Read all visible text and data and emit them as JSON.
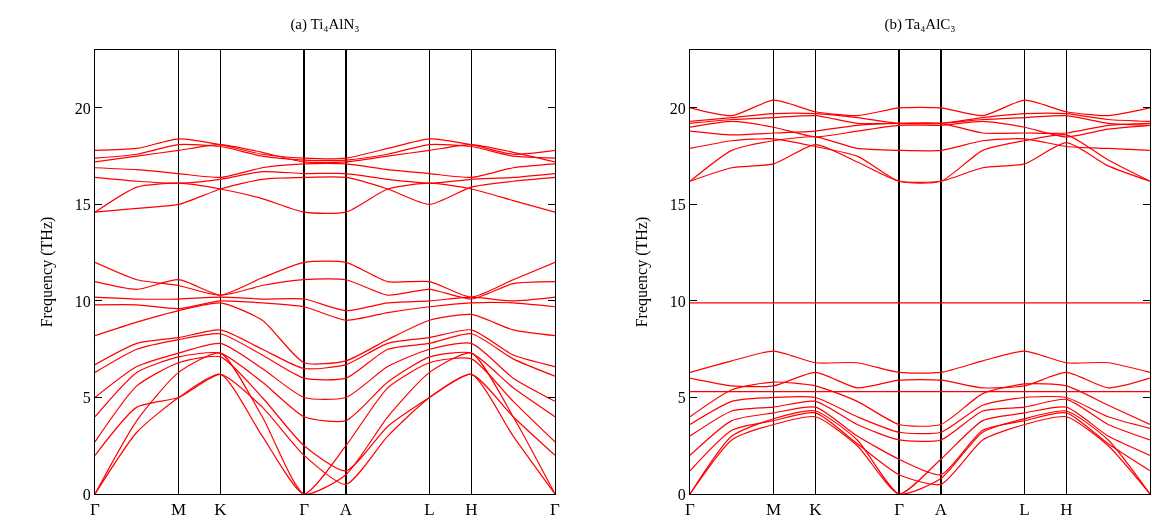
{
  "chart_data": [
    {
      "type": "line",
      "title": "(a) Ti₄AlN₃",
      "ylabel": "Frequency (THz)",
      "grid": "x",
      "line_style": "solid",
      "marker": "none",
      "categories": [
        "Γ",
        null,
        "M",
        "K",
        null,
        "Γ",
        "A",
        null,
        "L",
        "H",
        null,
        "Γ"
      ],
      "ylim": [
        0,
        23
      ],
      "yticks": [
        0,
        5,
        10,
        15,
        20
      ],
      "series": [
        {
          "color": "#ff0000",
          "values": [
            17.8,
            17.9,
            18.4,
            18.1,
            17.6,
            17.4,
            17.4,
            17.9,
            18.4,
            18.1,
            17.6,
            17.8
          ]
        },
        {
          "color": "#ff0000",
          "values": [
            17.4,
            17.6,
            18.1,
            18.0,
            17.5,
            17.3,
            17.3,
            17.6,
            18.1,
            18.0,
            17.5,
            17.4
          ]
        },
        {
          "color": "#ff0000",
          "values": [
            17.2,
            17.5,
            17.8,
            18.1,
            17.7,
            17.2,
            17.2,
            17.5,
            17.8,
            18.1,
            17.7,
            17.2
          ]
        },
        {
          "color": "#ff0000",
          "values": [
            16.9,
            16.8,
            16.6,
            16.4,
            16.9,
            17.1,
            17.1,
            16.8,
            16.6,
            16.4,
            16.9,
            17.1
          ]
        },
        {
          "color": "#ff0000",
          "values": [
            16.4,
            16.2,
            16.1,
            16.3,
            16.7,
            16.6,
            16.6,
            16.3,
            16.1,
            16.3,
            16.4,
            16.6
          ]
        },
        {
          "color": "#ff0000",
          "values": [
            14.6,
            15.9,
            16.1,
            15.8,
            15.3,
            14.6,
            14.6,
            15.8,
            16.1,
            15.8,
            15.2,
            14.6
          ]
        },
        {
          "color": "#ff0000",
          "values": [
            14.6,
            14.8,
            15.0,
            15.8,
            16.3,
            16.4,
            16.4,
            15.8,
            15.0,
            15.9,
            16.2,
            16.4
          ]
        },
        {
          "color": "#ff0000",
          "values": [
            12.0,
            11.1,
            10.8,
            10.3,
            11.2,
            12.0,
            12.0,
            11.0,
            11.0,
            10.2,
            11.1,
            12.0
          ]
        },
        {
          "color": "#ff0000",
          "values": [
            11.0,
            10.6,
            11.1,
            10.3,
            10.8,
            11.1,
            11.1,
            10.3,
            10.6,
            10.1,
            10.9,
            11.0
          ]
        },
        {
          "color": "#ff0000",
          "values": [
            10.2,
            10.1,
            10.1,
            10.2,
            10.1,
            10.1,
            9.5,
            9.9,
            10.0,
            10.2,
            10.0,
            10.2
          ]
        },
        {
          "color": "#ff0000",
          "values": [
            9.8,
            9.8,
            9.6,
            10.0,
            9.9,
            9.7,
            9.0,
            9.4,
            9.7,
            9.9,
            9.9,
            9.7
          ]
        },
        {
          "color": "#ff0000",
          "values": [
            8.2,
            8.9,
            9.5,
            9.9,
            9.0,
            6.8,
            6.9,
            8.0,
            9.0,
            9.3,
            8.5,
            8.2
          ]
        },
        {
          "color": "#ff0000",
          "values": [
            6.7,
            7.8,
            8.1,
            8.5,
            7.5,
            6.5,
            6.7,
            7.8,
            8.1,
            8.5,
            7.2,
            6.6
          ]
        },
        {
          "color": "#ff0000",
          "values": [
            6.3,
            7.5,
            8.0,
            8.3,
            7.2,
            6.0,
            6.0,
            7.5,
            7.8,
            8.3,
            7.0,
            6.1
          ]
        },
        {
          "color": "#ff0000",
          "values": [
            5.0,
            6.6,
            7.3,
            7.8,
            6.5,
            5.0,
            5.0,
            6.6,
            7.5,
            7.8,
            6.0,
            4.8
          ]
        },
        {
          "color": "#ff0000",
          "values": [
            4.0,
            6.3,
            7.1,
            7.3,
            5.8,
            4.0,
            3.8,
            5.8,
            7.1,
            7.3,
            5.5,
            4.0
          ]
        },
        {
          "color": "#ff0000",
          "values": [
            2.7,
            5.6,
            6.8,
            7.1,
            5.0,
            2.5,
            1.2,
            3.5,
            5.0,
            6.2,
            4.0,
            2.0
          ]
        },
        {
          "color": "#ff0000",
          "values": [
            2.0,
            4.5,
            5.0,
            6.2,
            4.5,
            2.0,
            0.5,
            3.0,
            5.0,
            6.2,
            3.0,
            0
          ]
        },
        {
          "color": "#ff0000",
          "values": [
            0,
            3.2,
            5.0,
            6.2,
            3.0,
            0,
            2.5,
            5.5,
            6.8,
            7.0,
            4.8,
            2.7
          ]
        },
        {
          "color": "#ff0000",
          "values": [
            0,
            3.8,
            6.3,
            7.3,
            4.0,
            0,
            1.0,
            4.0,
            6.3,
            7.3,
            4.0,
            0
          ]
        }
      ]
    },
    {
      "type": "line",
      "title": "(b) Ta₄AlC₃",
      "ylabel": "Frequency (THz)",
      "grid": "x",
      "line_style": "solid",
      "marker": "none",
      "categories": [
        "Γ",
        null,
        "M",
        "K",
        null,
        "Γ",
        "A",
        null,
        "L",
        "H",
        null,
        null
      ],
      "ylim": [
        0,
        23
      ],
      "yticks": [
        0,
        5,
        10,
        15,
        20
      ],
      "series": [
        {
          "color": "#ff0000",
          "values": [
            20.0,
            19.6,
            20.4,
            19.8,
            19.6,
            20.0,
            20.0,
            19.6,
            20.4,
            19.8,
            19.6,
            20.0
          ]
        },
        {
          "color": "#ff0000",
          "values": [
            19.3,
            19.5,
            19.7,
            19.7,
            19.5,
            19.2,
            19.2,
            19.5,
            19.7,
            19.7,
            19.4,
            19.3
          ]
        },
        {
          "color": "#ff0000",
          "values": [
            19.2,
            19.4,
            19.5,
            19.6,
            19.2,
            19.2,
            19.2,
            19.4,
            19.5,
            19.6,
            19.2,
            19.1
          ]
        },
        {
          "color": "#ff0000",
          "values": [
            19.0,
            19.3,
            19.0,
            18.5,
            18.8,
            19.1,
            19.1,
            19.3,
            19.0,
            18.5,
            18.9,
            19.1
          ]
        },
        {
          "color": "#ff0000",
          "values": [
            18.8,
            18.6,
            18.7,
            18.8,
            19.1,
            19.2,
            19.2,
            18.7,
            18.7,
            18.7,
            19.1,
            19.2
          ]
        },
        {
          "color": "#ff0000",
          "values": [
            17.9,
            18.3,
            18.4,
            18.0,
            17.5,
            16.2,
            16.2,
            17.8,
            18.3,
            18.6,
            17.3,
            16.2
          ]
        },
        {
          "color": "#ff0000",
          "values": [
            16.2,
            17.8,
            18.3,
            18.5,
            17.9,
            17.8,
            17.8,
            18.3,
            18.4,
            18.0,
            17.9,
            17.8
          ]
        },
        {
          "color": "#ff0000",
          "values": [
            16.2,
            16.9,
            17.1,
            18.1,
            17.2,
            16.2,
            16.2,
            16.9,
            17.1,
            18.2,
            17.0,
            16.2
          ]
        },
        {
          "color": "#ff0000",
          "values": [
            9.9,
            9.9,
            9.9,
            9.9,
            9.9,
            9.9,
            9.9,
            9.9,
            9.9,
            9.9,
            9.9,
            9.9
          ]
        },
        {
          "color": "#ff0000",
          "values": [
            6.3,
            6.9,
            7.4,
            6.8,
            6.8,
            6.3,
            6.3,
            6.9,
            7.4,
            6.8,
            6.8,
            6.3
          ]
        },
        {
          "color": "#ff0000",
          "values": [
            6.0,
            5.6,
            5.6,
            6.3,
            5.5,
            5.9,
            5.9,
            5.5,
            5.6,
            6.3,
            5.5,
            6.0
          ]
        },
        {
          "color": "#ff0000",
          "values": [
            5.3,
            5.3,
            5.3,
            5.3,
            5.3,
            5.3,
            5.3,
            5.3,
            5.3,
            5.3,
            5.3,
            5.3
          ]
        },
        {
          "color": "#ff0000",
          "values": [
            4.0,
            5.4,
            5.8,
            5.6,
            4.8,
            3.6,
            3.6,
            5.2,
            5.7,
            5.6,
            4.6,
            3.6
          ]
        },
        {
          "color": "#ff0000",
          "values": [
            3.6,
            4.8,
            5.0,
            5.0,
            4.0,
            3.2,
            3.2,
            4.6,
            5.0,
            5.0,
            4.0,
            3.4
          ]
        },
        {
          "color": "#ff0000",
          "values": [
            3.0,
            4.3,
            4.5,
            4.8,
            3.6,
            2.8,
            2.8,
            4.3,
            4.5,
            4.9,
            3.6,
            2.8
          ]
        },
        {
          "color": "#ff0000",
          "values": [
            2.0,
            3.8,
            4.2,
            4.5,
            3.0,
            1.8,
            1.0,
            3.3,
            3.8,
            4.2,
            2.6,
            1.2
          ]
        },
        {
          "color": "#ff0000",
          "values": [
            1.2,
            3.3,
            3.8,
            4.2,
            2.6,
            1.0,
            0.5,
            2.8,
            3.6,
            4.0,
            2.5,
            0
          ]
        },
        {
          "color": "#ff0000",
          "values": [
            0,
            2.8,
            3.6,
            4.0,
            2.5,
            0,
            1.8,
            3.8,
            4.2,
            4.5,
            3.0,
            2.0
          ]
        },
        {
          "color": "#ff0000",
          "values": [
            0,
            3.0,
            3.9,
            4.3,
            2.8,
            0,
            0.8,
            3.2,
            3.9,
            4.3,
            2.8,
            0
          ]
        }
      ]
    }
  ]
}
